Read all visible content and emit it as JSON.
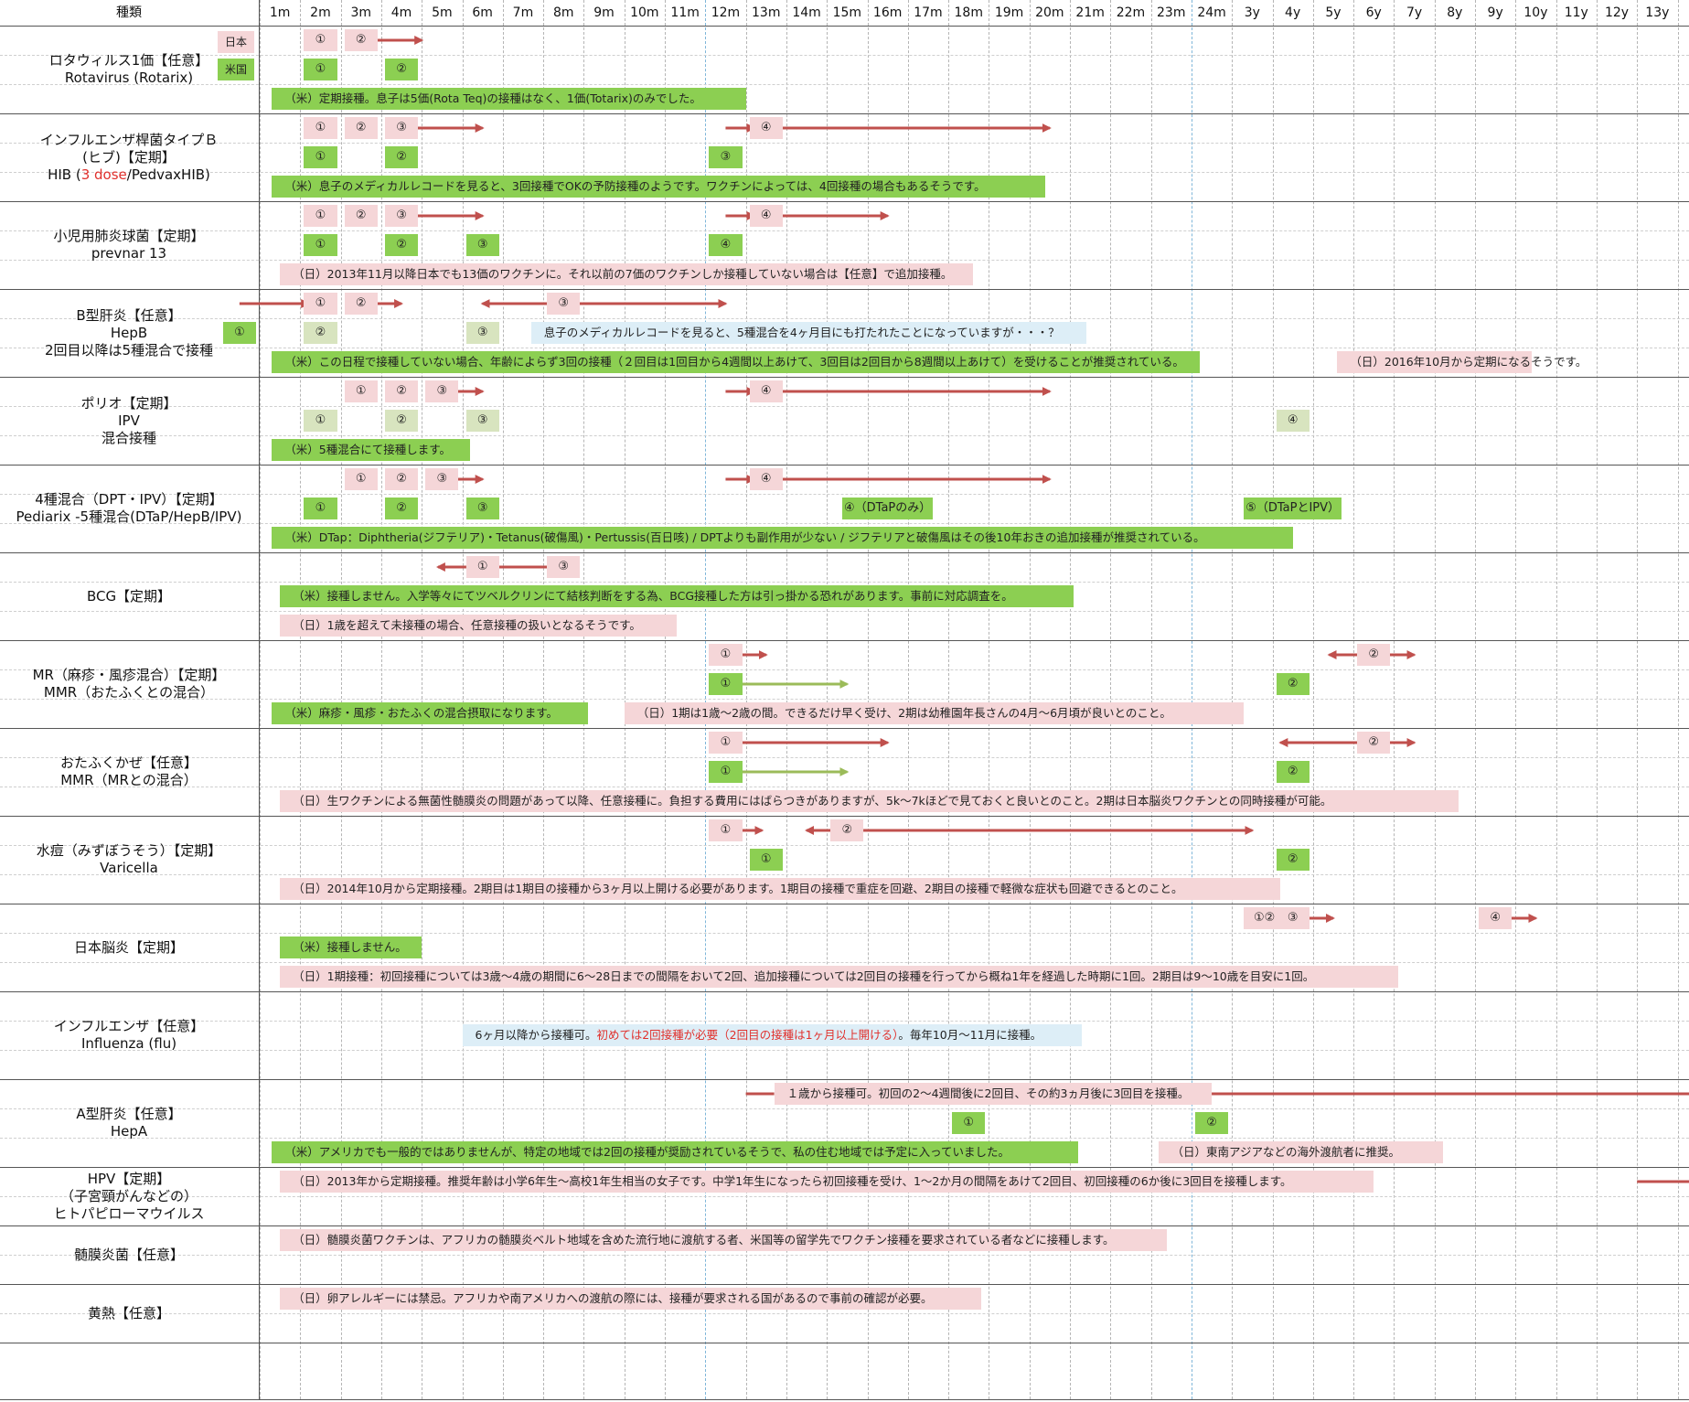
{
  "header": {
    "type_label": "種類",
    "columns": [
      "1m",
      "2m",
      "3m",
      "4m",
      "5m",
      "6m",
      "7m",
      "8m",
      "9m",
      "10m",
      "11m",
      "12m",
      "13m",
      "14m",
      "15m",
      "16m",
      "17m",
      "18m",
      "19m",
      "20m",
      "21m",
      "22m",
      "23m",
      "24m",
      "3y",
      "4y",
      "5y",
      "6y",
      "7y",
      "8y",
      "9y",
      "10y",
      "11y",
      "12y",
      "13y"
    ]
  },
  "legend": {
    "japan": "日本",
    "usa": "米国"
  },
  "rows": [
    {
      "id": "rota",
      "label_lines": [
        "ロタウィルス1価【任意】",
        "Rotavirus (Rotarix)"
      ],
      "japan": {
        "doses": [
          {
            "mark": "①",
            "at": 2
          },
          {
            "mark": "②",
            "at": 3
          }
        ],
        "arrows": [
          {
            "from": 3.3,
            "to": 4.5
          }
        ]
      },
      "usa": {
        "doses": [
          {
            "mark": "①",
            "at": 2
          },
          {
            "mark": "②",
            "at": 4
          }
        ]
      },
      "notes": [
        {
          "text": "（米）定期接種。息子は5価(Rota Teq)の接種はなく、1価(Totarix)のみでした。",
          "from": 0.3,
          "to": 12,
          "style": "usa"
        }
      ]
    },
    {
      "id": "hib",
      "label_lines": [
        "インフルエンザ桿菌タイプＢ",
        "(ヒブ)【定期】"
      ],
      "label_third": {
        "before": "HIB (",
        "red": "3 dose",
        "after": "/PedvaxHIB)"
      },
      "japan": {
        "doses": [
          {
            "mark": "①",
            "at": 2
          },
          {
            "mark": "②",
            "at": 3
          },
          {
            "mark": "③",
            "at": 4
          },
          {
            "mark": "④",
            "at": 13
          }
        ],
        "arrows": [
          {
            "from": 4.3,
            "to": 6
          },
          {
            "from": 12,
            "to": 12.7
          },
          {
            "from": 13.3,
            "to": 20
          }
        ]
      },
      "usa": {
        "doses": [
          {
            "mark": "①",
            "at": 2
          },
          {
            "mark": "②",
            "at": 4
          },
          {
            "mark": "③",
            "at": 12
          }
        ]
      },
      "notes": [
        {
          "text": "（米）息子のメディカルレコードを見ると、3回接種でOKの予防接種のようです。ワクチンによっては、4回接種の場合もあるそうです。",
          "from": 0.3,
          "to": 19.4,
          "style": "usa"
        }
      ]
    },
    {
      "id": "pcv",
      "label_lines": [
        "小児用肺炎球菌【定期】",
        "prevnar 13"
      ],
      "japan": {
        "doses": [
          {
            "mark": "①",
            "at": 2
          },
          {
            "mark": "②",
            "at": 3
          },
          {
            "mark": "③",
            "at": 4
          },
          {
            "mark": "④",
            "at": 13
          }
        ],
        "arrows": [
          {
            "from": 4.3,
            "to": 6
          },
          {
            "from": 12,
            "to": 12.7
          },
          {
            "from": 13.3,
            "to": 16
          }
        ]
      },
      "usa": {
        "doses": [
          {
            "mark": "①",
            "at": 2
          },
          {
            "mark": "②",
            "at": 4
          },
          {
            "mark": "③",
            "at": 6
          },
          {
            "mark": "④",
            "at": 12
          }
        ]
      },
      "notes": [
        {
          "text": "（日）2013年11月以降日本でも13価のワクチンに。それ以前の7価のワクチンしか接種していない場合は【任意】で追加接種。",
          "from": 0.5,
          "to": 17.6,
          "style": "japan"
        }
      ]
    },
    {
      "id": "hepb",
      "label_lines": [
        "B型肝炎【任意】",
        "HepB",
        "2回目以降は5種混合で接種"
      ],
      "japan": {
        "doses": [
          {
            "mark": "①",
            "at": 2
          },
          {
            "mark": "②",
            "at": 3
          },
          {
            "mark": "③",
            "at": 8
          }
        ],
        "arrows": [
          {
            "from": 0,
            "to": 1.7
          },
          {
            "from": 3.3,
            "to": 4
          },
          {
            "from": 7.6,
            "to": 6
          },
          {
            "from": 8.4,
            "to": 12
          }
        ]
      },
      "usa": {
        "doses": [
          {
            "mark": "①",
            "at": 0
          },
          {
            "mark": "②",
            "at": 2,
            "style": "light"
          },
          {
            "mark": "③",
            "at": 6,
            "style": "light"
          }
        ]
      },
      "notes": [
        {
          "text": "息子のメディカルレコードを見ると、5種混合を4ヶ月目にも打たれたことになっていますが・・・？",
          "from": 6.7,
          "to": 20.4,
          "style": "info"
        },
        {
          "text": "（米）この日程で接種していない場合、年齢によらず3回の接種（２回目は1回目から4週間以上あけて、3回目は2回目から8週間以上あけて）を受けることが推奨されている。",
          "from": 0.3,
          "to": 23.2,
          "style": "usa"
        },
        {
          "text": "（日）2016年10月から定期になるそうです。",
          "from": 26.6,
          "to": 31.4,
          "style": "japan"
        }
      ]
    },
    {
      "id": "polio",
      "label_lines": [
        "ポリオ【定期】",
        "IPV",
        "混合接種"
      ],
      "japan": {
        "doses": [
          {
            "mark": "①",
            "at": 3
          },
          {
            "mark": "②",
            "at": 4
          },
          {
            "mark": "③",
            "at": 5
          },
          {
            "mark": "④",
            "at": 13
          }
        ],
        "arrows": [
          {
            "from": 5.3,
            "to": 6
          },
          {
            "from": 12,
            "to": 12.7
          },
          {
            "from": 13.3,
            "to": 20
          }
        ]
      },
      "usa": {
        "doses": [
          {
            "mark": "①",
            "at": 2,
            "style": "light"
          },
          {
            "mark": "②",
            "at": 4,
            "style": "light"
          },
          {
            "mark": "③",
            "at": 6,
            "style": "light"
          },
          {
            "mark": "④",
            "at": 26,
            "style": "light"
          }
        ]
      },
      "notes": [
        {
          "text": "（米）5種混合にて接種します。",
          "from": 0.3,
          "to": 5.2,
          "style": "usa"
        }
      ]
    },
    {
      "id": "dpt",
      "label_lines": [
        "4種混合（DPT・IPV）【定期】",
        "Pediarix -5種混合(DTaP/HepB/IPV)"
      ],
      "japan": {
        "doses": [
          {
            "mark": "①",
            "at": 3
          },
          {
            "mark": "②",
            "at": 4
          },
          {
            "mark": "③",
            "at": 5
          },
          {
            "mark": "④",
            "at": 13
          }
        ],
        "arrows": [
          {
            "from": 5.3,
            "to": 6
          },
          {
            "from": 12,
            "to": 12.7
          },
          {
            "from": 13.3,
            "to": 20
          }
        ]
      },
      "usa": {
        "doses": [
          {
            "mark": "①",
            "at": 2
          },
          {
            "mark": "②",
            "at": 4
          },
          {
            "mark": "③",
            "at": 6
          },
          {
            "mark": "④（DTaPのみ）",
            "at": 16,
            "wide": 2.4
          },
          {
            "mark": "⑤（DTaPとIPV）",
            "at": 26,
            "wide": 2.6
          }
        ]
      },
      "notes": [
        {
          "text": "（米）DTap：Diphtheria(ジフテリア)・Tetanus(破傷風)・Pertussis(百日咳) / DPTよりも副作用が少ない / ジフテリアと破傷風はその後10年おきの追加接種が推奨されている。",
          "from": 0.3,
          "to": 25.5,
          "style": "usa"
        }
      ]
    },
    {
      "id": "bcg",
      "label_lines": [
        "BCG【定期】"
      ],
      "japan": {
        "doses": [
          {
            "mark": "①",
            "at": 6
          },
          {
            "mark": "③",
            "at": 8
          }
        ],
        "arrows": [
          {
            "from": 5.6,
            "to": 4.9
          },
          {
            "from": 6.4,
            "to": 8.1
          }
        ]
      },
      "usa": {
        "doses": []
      },
      "notes": [
        {
          "text": "（米）接種しません。入学等々にてツベルクリンにて結核判断をする為、BCG接種した方は引っ掛かる恐れがあります。事前に対応調査を。",
          "from": 0.5,
          "to": 20.1,
          "style": "usa"
        },
        {
          "text": "（日）1歳を超えて未接種の場合、任意接種の扱いとなるそうです。",
          "from": 0.5,
          "to": 10.3,
          "style": "japan"
        }
      ]
    },
    {
      "id": "mr",
      "label_lines": [
        "MR（麻疹・風疹混合）【定期】",
        "MMR（おたふくとの混合）"
      ],
      "japan": {
        "doses": [
          {
            "mark": "①",
            "at": 12
          },
          {
            "mark": "②",
            "at": 28
          }
        ],
        "arrows": [
          {
            "from": 12.4,
            "to": 13
          },
          {
            "from": 27.6,
            "to": 26.9
          },
          {
            "from": 28.4,
            "to": 29
          }
        ]
      },
      "usa": {
        "doses": [
          {
            "mark": "①",
            "at": 12
          },
          {
            "mark": "②",
            "at": 26
          }
        ],
        "arrows": [
          {
            "from": 12.4,
            "to": 15,
            "color": "green"
          }
        ]
      },
      "notes": [
        {
          "text": "（米）麻疹・風疹・おたふくの混合摂取になります。",
          "from": 0.3,
          "to": 8.1,
          "style": "usa"
        },
        {
          "text": "（日）1期は1歳～2歳の間。できるだけ早く受け、2期は幼稚園年長さんの4月～6月頃が良いとのこと。",
          "from": 9,
          "to": 24.3,
          "style": "japan"
        }
      ]
    },
    {
      "id": "mumps",
      "label_lines": [
        "おたふくかぜ【任意】",
        "MMR（MRとの混合）"
      ],
      "japan": {
        "doses": [
          {
            "mark": "①",
            "at": 12
          },
          {
            "mark": "②",
            "at": 28
          }
        ],
        "arrows": [
          {
            "from": 12.4,
            "to": 16
          },
          {
            "from": 27.6,
            "to": 25.7
          },
          {
            "from": 28.4,
            "to": 29
          }
        ]
      },
      "usa": {
        "doses": [
          {
            "mark": "①",
            "at": 12
          },
          {
            "mark": "②",
            "at": 26
          }
        ],
        "arrows": [
          {
            "from": 12.4,
            "to": 15,
            "color": "green"
          }
        ]
      },
      "notes": [
        {
          "text": "（日）生ワクチンによる無菌性髄膜炎の問題があって以降、任意接種に。負担する費用にはばらつきがありますが、5k～7kほどで見ておくと良いとのこと。2期は日本脳炎ワクチンとの同時接種が可能。",
          "from": 0.5,
          "to": 29.6,
          "style": "japan"
        }
      ]
    },
    {
      "id": "varicella",
      "label_lines": [
        "水痘（みずぼうそう）【定期】",
        "Varicella"
      ],
      "japan": {
        "doses": [
          {
            "mark": "①",
            "at": 12
          },
          {
            "mark": "②",
            "at": 15
          }
        ],
        "arrows": [
          {
            "from": 12.4,
            "to": 12.9
          },
          {
            "from": 14.6,
            "to": 14
          },
          {
            "from": 15.4,
            "to": 25
          }
        ]
      },
      "usa": {
        "doses": [
          {
            "mark": "①",
            "at": 13
          },
          {
            "mark": "②",
            "at": 26
          }
        ]
      },
      "notes": [
        {
          "text": "（日）2014年10月から定期接種。2期目は1期目の接種から3ヶ月以上開ける必要があります。1期目の接種で重症を回避、2期目の接種で軽微な症状も回避できるとのこと。",
          "from": 0.5,
          "to": 25.2,
          "style": "japan"
        }
      ]
    },
    {
      "id": "je",
      "label_lines": [
        "日本脳炎【定期】"
      ],
      "japan": {
        "doses": [
          {
            "mark": "①②",
            "at": 25.3,
            "wide": 1.2
          },
          {
            "mark": "③",
            "at": 26
          },
          {
            "mark": "④",
            "at": 31
          }
        ],
        "arrows": [
          {
            "from": 26.4,
            "to": 27
          },
          {
            "from": 31.4,
            "to": 32
          }
        ]
      },
      "usa": {
        "doses": []
      },
      "notes": [
        {
          "text": "（米）接種しません。",
          "from": 0.5,
          "to": 4,
          "style": "usa"
        },
        {
          "text": "（日）1期接種：初回接種については3歳～4歳の期間に6～28日までの間隔をおいて2回、追加接種については2回目の接種を行ってから概ね1年を経過した時期に1回。2期目は9～10歳を目安に1回。",
          "from": 0.5,
          "to": 28.1,
          "style": "japan"
        }
      ]
    },
    {
      "id": "flu",
      "label_lines": [
        "インフルエンザ【任意】",
        "Influenza (flu)"
      ],
      "japan": {
        "doses": [],
        "arrows": []
      },
      "usa": {
        "doses": []
      },
      "notes": [],
      "flu_note": {
        "before": "6ヶ月以降から接種可。",
        "red": "初めては2回接種が必要（2回目の接種は1ヶ月以上開ける）",
        "after": "。毎年10月～11月に接種。"
      }
    },
    {
      "id": "hepa",
      "label_lines": [
        "A型肝炎【任意】",
        "HepA"
      ],
      "japan": {
        "doses": [],
        "arrows": []
      },
      "usa": {
        "doses": [
          {
            "mark": "①",
            "at": 18
          },
          {
            "mark": "②",
            "at": 24
          }
        ]
      },
      "lines": [
        {
          "from": 12,
          "to": 12.7
        },
        {
          "from": 23.5,
          "to": 35.7
        }
      ],
      "notes": [
        {
          "text": "１歳から接種可。初回の2～4週間後に2回目、その約3ヵ月後に3回目を接種。",
          "from": 12.7,
          "to": 23.5,
          "style": "japan",
          "row": 0
        },
        {
          "text": "（米）アメリカでも一般的ではありませんが、特定の地域では2回の接種が奨励されているそうで、私の住む地域では予定に入っていました。",
          "from": 0.3,
          "to": 20.2,
          "style": "usa"
        },
        {
          "text": "（日）東南アジアなどの海外渡航者に推奨。",
          "from": 22.2,
          "to": 29.2,
          "style": "japan"
        }
      ]
    },
    {
      "id": "hpv",
      "label_lines": [
        "HPV【定期】",
        "（子宮頸がんなどの）",
        "ヒトパピローマウイルス"
      ],
      "japan": {
        "doses": [],
        "arrows": []
      },
      "usa": {
        "doses": []
      },
      "lines": [
        {
          "from": 34,
          "to": 35.7
        }
      ],
      "notes": [
        {
          "text": "（日）2013年から定期接種。推奨年齢は小学6年生～高校1年生相当の女子です。中学1年生になったら初回接種を受け、1～2か月の間隔をあけて2回目、初回接種の6か後に3回目を接種します。",
          "from": 0.5,
          "to": 27.5,
          "style": "japan"
        }
      ]
    },
    {
      "id": "mening",
      "label_lines": [
        "髄膜炎菌【任意】"
      ],
      "notes": [
        {
          "text": "（日）髄膜炎菌ワクチンは、アフリカの髄膜炎ベルト地域を含めた流行地に渡航する者、米国等の留学先でワクチン接種を要求されている者などに接種します。",
          "from": 0.5,
          "to": 22.4,
          "style": "japan"
        }
      ]
    },
    {
      "id": "yellow",
      "label_lines": [
        "黄熱【任意】"
      ],
      "notes": [
        {
          "text": "（日）卵アレルギーには禁忌。アフリカや南アメリカへの渡航の際には、接種が要求される国があるので事前の確認が必要。",
          "from": 0.5,
          "to": 17.8,
          "style": "japan"
        }
      ]
    }
  ]
}
